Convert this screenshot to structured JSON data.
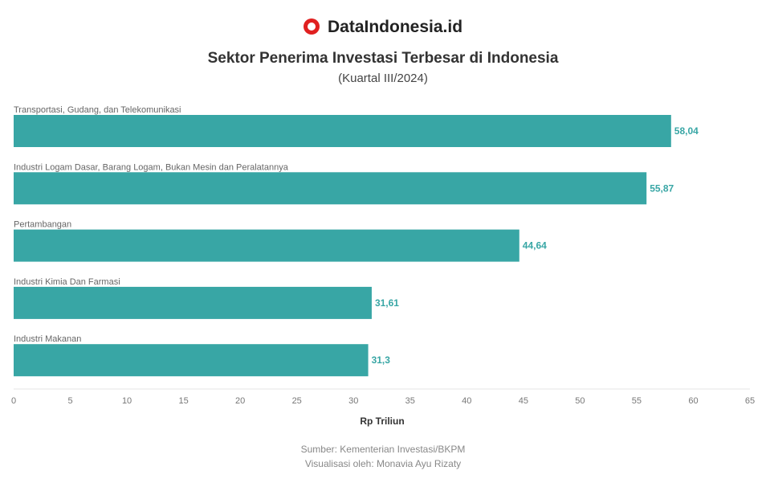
{
  "brand": "DataIndonesia.id",
  "chart_data": {
    "type": "bar",
    "orientation": "horizontal",
    "title": "Sektor Penerima Investasi Terbesar di Indonesia",
    "subtitle": "(Kuartal III/2024)",
    "categories": [
      "Transportasi, Gudang, dan Telekomunikasi",
      "Industri Logam Dasar, Barang Logam, Bukan Mesin dan Peralatannya",
      "Pertambangan",
      "Industri Kimia Dan Farmasi",
      "Industri Makanan"
    ],
    "values": [
      58.04,
      55.87,
      44.64,
      31.61,
      31.3
    ],
    "value_labels": [
      "58,04",
      "55,87",
      "44,64",
      "31,61",
      "31,3"
    ],
    "xlabel": "Rp Triliun",
    "xlim": [
      0,
      65
    ],
    "xticks": [
      0,
      5,
      10,
      15,
      20,
      25,
      30,
      35,
      40,
      45,
      50,
      55,
      60,
      65
    ],
    "bar_color": "#38a6a5",
    "grid": false
  },
  "footer": {
    "source": "Sumber: Kementerian Investasi/BKPM",
    "visual": "Visualisasi oleh: Monavia Ayu Rizaty"
  }
}
